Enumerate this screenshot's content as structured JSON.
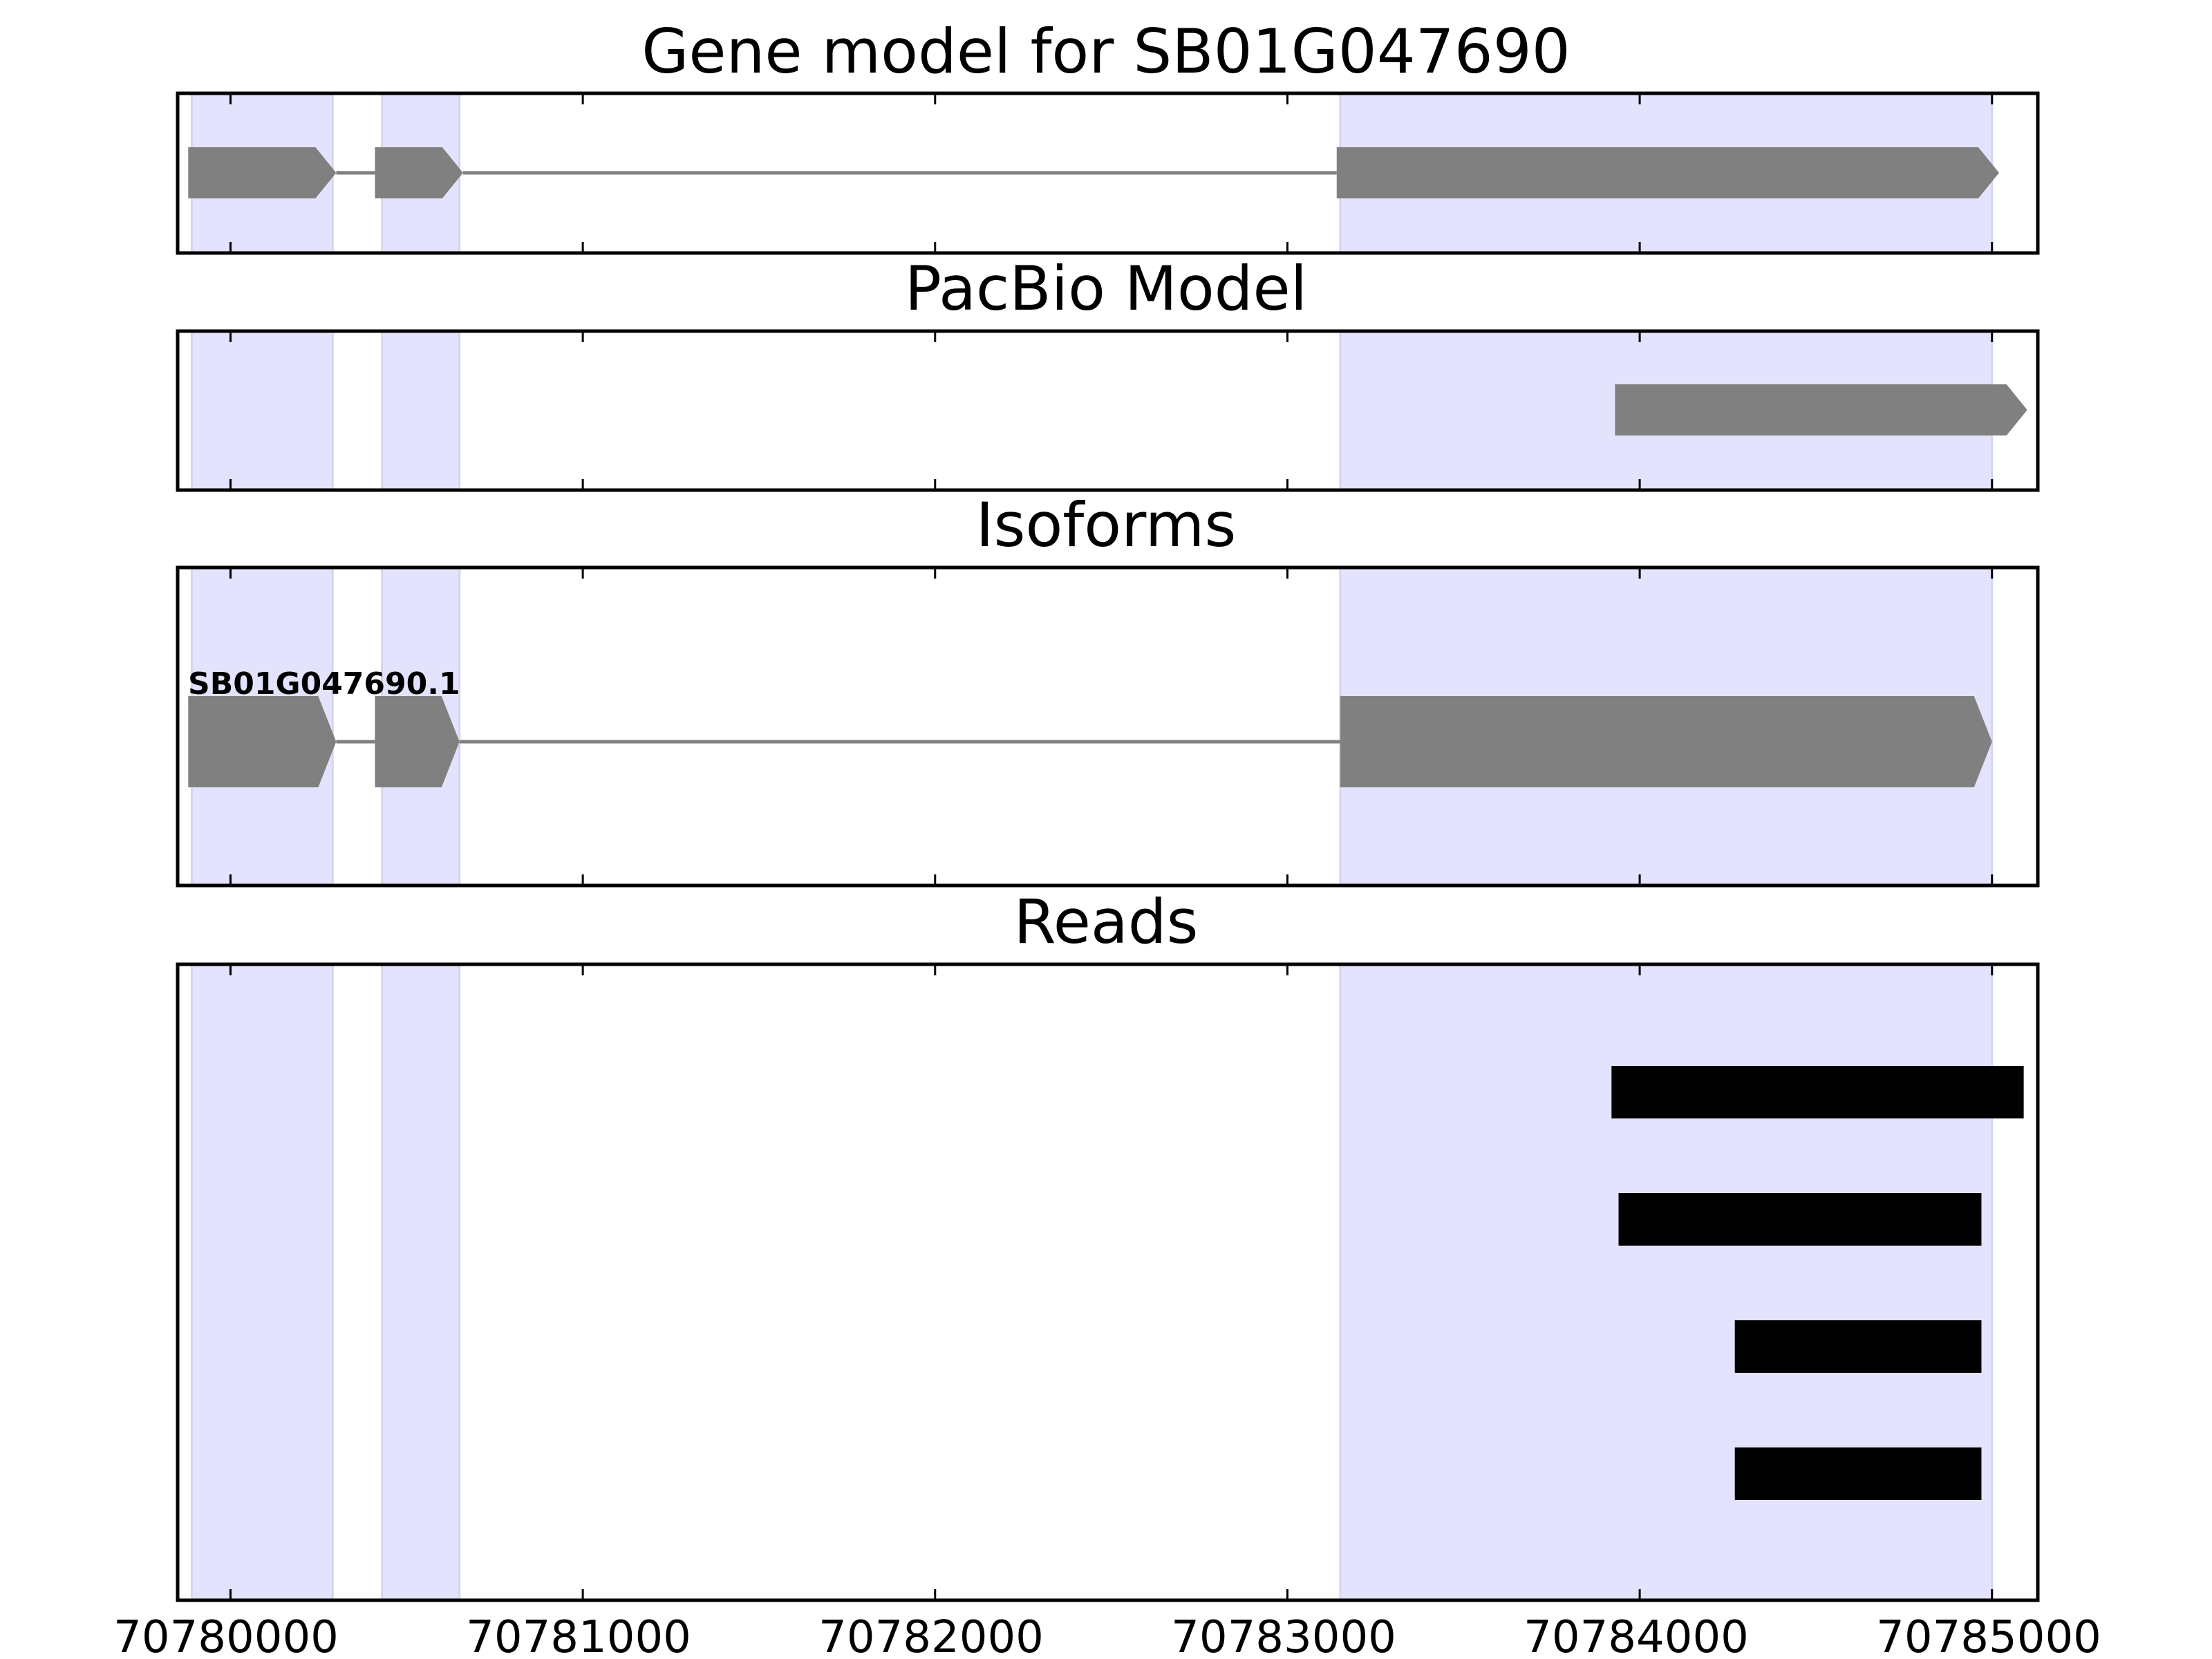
{
  "chart_data": {
    "type": "gene-track",
    "xlim": [
      70779850,
      70785130
    ],
    "x_ticks": [
      70780000,
      70781000,
      70782000,
      70783000,
      70784000,
      70785000
    ],
    "x_tick_labels": [
      "70780000",
      "70781000",
      "70782000",
      "70783000",
      "70784000",
      "70785000"
    ],
    "highlight_regions": [
      {
        "start": 70779890,
        "end": 70780290
      },
      {
        "start": 70780430,
        "end": 70780650
      },
      {
        "start": 70783150,
        "end": 70785000
      }
    ],
    "panels": [
      {
        "id": "gene-model",
        "title": "Gene model for SB01G047690",
        "strand": "+",
        "exons": [
          {
            "start": 70779880,
            "end": 70780300
          },
          {
            "start": 70780410,
            "end": 70780660
          },
          {
            "start": 70783140,
            "end": 70785020
          }
        ]
      },
      {
        "id": "pacbio",
        "title": "PacBio Model",
        "strand": "+",
        "exons": [
          {
            "start": 70783930,
            "end": 70785100
          }
        ]
      },
      {
        "id": "isoforms",
        "title": "Isoforms",
        "isoform_label": "SB01G047690.1",
        "strand": "+",
        "exons": [
          {
            "start": 70779880,
            "end": 70780300
          },
          {
            "start": 70780410,
            "end": 70780650
          },
          {
            "start": 70783150,
            "end": 70785000
          }
        ]
      },
      {
        "id": "reads",
        "title": "Reads",
        "reads": [
          {
            "start": 70783920,
            "end": 70785090
          },
          {
            "start": 70783940,
            "end": 70784970
          },
          {
            "start": 70784270,
            "end": 70784970
          },
          {
            "start": 70784270,
            "end": 70784970
          }
        ]
      }
    ],
    "colors": {
      "exon": "#808080",
      "intron": "#808080",
      "read": "#000000",
      "highlight": "#e3e3fd"
    }
  }
}
